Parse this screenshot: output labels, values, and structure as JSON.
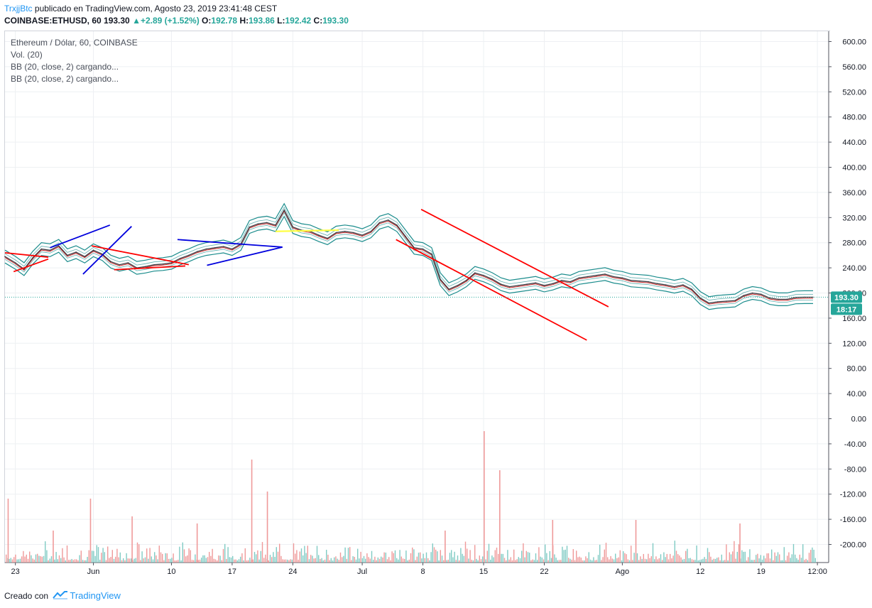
{
  "header": {
    "user": "TrxjjBtc",
    "published_text": "publicado en TradingView.com, Agosto 23, 2019 23:41:48 CEST",
    "symbol": "COINBASE:ETHUSD, 60",
    "last": "193.30",
    "change": "+2.89 (+1.52%)",
    "o_label": "O:",
    "o_value": "192.78",
    "h_label": "H:",
    "h_value": "193.86",
    "l_label": "L:",
    "l_value": "192.42",
    "c_label": "C:",
    "c_value": "193.30",
    "up_arrow": "▲"
  },
  "legend": [
    "Ethereum / Dólar, 60, COINBASE",
    "Vol. (20)",
    "BB (20, close, 2) cargando...",
    "BB (20, close, 2) cargando..."
  ],
  "price_label": "193.30",
  "countdown_label": "18:17",
  "footer": {
    "text": "Creado con",
    "brand": "TradingView"
  },
  "colors": {
    "price_line": "#3a3f46",
    "bb_band": "#1a8c8c",
    "bb_mid": "#c62828",
    "vol_up": "#80cbc4",
    "vol_down": "#ef9a9a",
    "trend_red": "#ff0000",
    "trend_blue": "#0000dd",
    "trend_yellow": "#ffff44",
    "price_label_bg": "#26a69a",
    "countdown_bg": "#26a69a"
  },
  "chart_data": {
    "type": "line",
    "title": "Ethereum / Dólar, 60, COINBASE",
    "ylim": [
      -230,
      620
    ],
    "y_ticks": [
      "600.00",
      "560.00",
      "520.00",
      "480.00",
      "440.00",
      "400.00",
      "360.00",
      "320.00",
      "280.00",
      "240.00",
      "200.00",
      "160.00",
      "120.00",
      "80.00",
      "40.00",
      "0.00",
      "-40.00",
      "-80.00",
      "-120.00",
      "-160.00",
      "-200.00"
    ],
    "y_tick_values": [
      600,
      560,
      520,
      480,
      440,
      400,
      360,
      320,
      280,
      240,
      200,
      160,
      120,
      80,
      40,
      0,
      -40,
      -80,
      -120,
      -160,
      -200
    ],
    "x_ticks": [
      "23",
      "Jun",
      "10",
      "17",
      "24",
      "Jul",
      "8",
      "15",
      "22",
      "Ago",
      "12",
      "19",
      "12:00"
    ],
    "x_tick_days": [
      0,
      9,
      18,
      25,
      32,
      40,
      47,
      54,
      61,
      70,
      79,
      86,
      92.5
    ],
    "xlim_days": [
      -1.2,
      93.8
    ],
    "current_price": 193.3,
    "series": [
      {
        "name": "ETHUSD",
        "x": [
          -1.2,
          0,
          1,
          2,
          3,
          4,
          5,
          6,
          7,
          8,
          9,
          10,
          11,
          12,
          13,
          14,
          15,
          16,
          17,
          18,
          19,
          20,
          21,
          22,
          23,
          24,
          25,
          26,
          27,
          28,
          29,
          30,
          31,
          32,
          33,
          34,
          35,
          36,
          37,
          38,
          39,
          40,
          41,
          42,
          43,
          44,
          45,
          46,
          47,
          48,
          49,
          50,
          51,
          52,
          53,
          54,
          55,
          56,
          57,
          58,
          59,
          60,
          61,
          62,
          63,
          64,
          65,
          66,
          67,
          68,
          69,
          70,
          71,
          72,
          73,
          74,
          75,
          76,
          77,
          78,
          79,
          80,
          81,
          82,
          83,
          84,
          85,
          86,
          87,
          88,
          89,
          90,
          91,
          92
        ],
        "y": [
          258,
          248,
          238,
          256,
          270,
          268,
          275,
          260,
          265,
          258,
          268,
          262,
          250,
          245,
          248,
          240,
          242,
          245,
          246,
          248,
          255,
          260,
          266,
          270,
          272,
          274,
          270,
          278,
          305,
          310,
          312,
          308,
          332,
          305,
          300,
          298,
          292,
          287,
          296,
          298,
          296,
          292,
          298,
          312,
          316,
          308,
          290,
          272,
          270,
          262,
          222,
          206,
          212,
          220,
          232,
          228,
          222,
          214,
          210,
          212,
          214,
          216,
          212,
          215,
          220,
          218,
          224,
          226,
          228,
          230,
          226,
          224,
          220,
          219,
          218,
          215,
          213,
          210,
          213,
          206,
          192,
          184,
          186,
          187,
          188,
          196,
          200,
          198,
          192,
          190,
          190,
          193,
          193.3,
          193.3
        ]
      }
    ],
    "volume": {
      "note": "hourly volume histogram, bottom pane",
      "spikes_days": [
        -0.9,
        4.3,
        8.6,
        13.4,
        20.9,
        27.2,
        29.0,
        49.5,
        54.0,
        55.8,
        61.9,
        71.5,
        83.5
      ]
    },
    "trendlines": [
      {
        "color": "red",
        "from": [
          -1.2,
          264
        ],
        "to": [
          3.8,
          257
        ]
      },
      {
        "color": "red",
        "from": [
          -0.2,
          234
        ],
        "to": [
          3.8,
          254
        ]
      },
      {
        "color": "blue",
        "from": [
          4.0,
          272
        ],
        "to": [
          10.9,
          308
        ]
      },
      {
        "color": "blue",
        "from": [
          7.8,
          230
        ],
        "to": [
          13.4,
          306
        ]
      },
      {
        "color": "red",
        "from": [
          8.8,
          275
        ],
        "to": [
          20.0,
          245
        ]
      },
      {
        "color": "red",
        "from": [
          11.4,
          237
        ],
        "to": [
          19.6,
          243
        ]
      },
      {
        "color": "blue",
        "from": [
          18.7,
          285
        ],
        "to": [
          30.8,
          273
        ]
      },
      {
        "color": "blue",
        "from": [
          22.1,
          244
        ],
        "to": [
          30.8,
          273
        ]
      },
      {
        "color": "yellow",
        "from": [
          30.0,
          298
        ],
        "to": [
          37.3,
          300
        ]
      },
      {
        "color": "red",
        "from": [
          46.8,
          333
        ],
        "to": [
          68.4,
          178
        ]
      },
      {
        "color": "red",
        "from": [
          43.9,
          285
        ],
        "to": [
          65.9,
          125
        ]
      }
    ]
  }
}
